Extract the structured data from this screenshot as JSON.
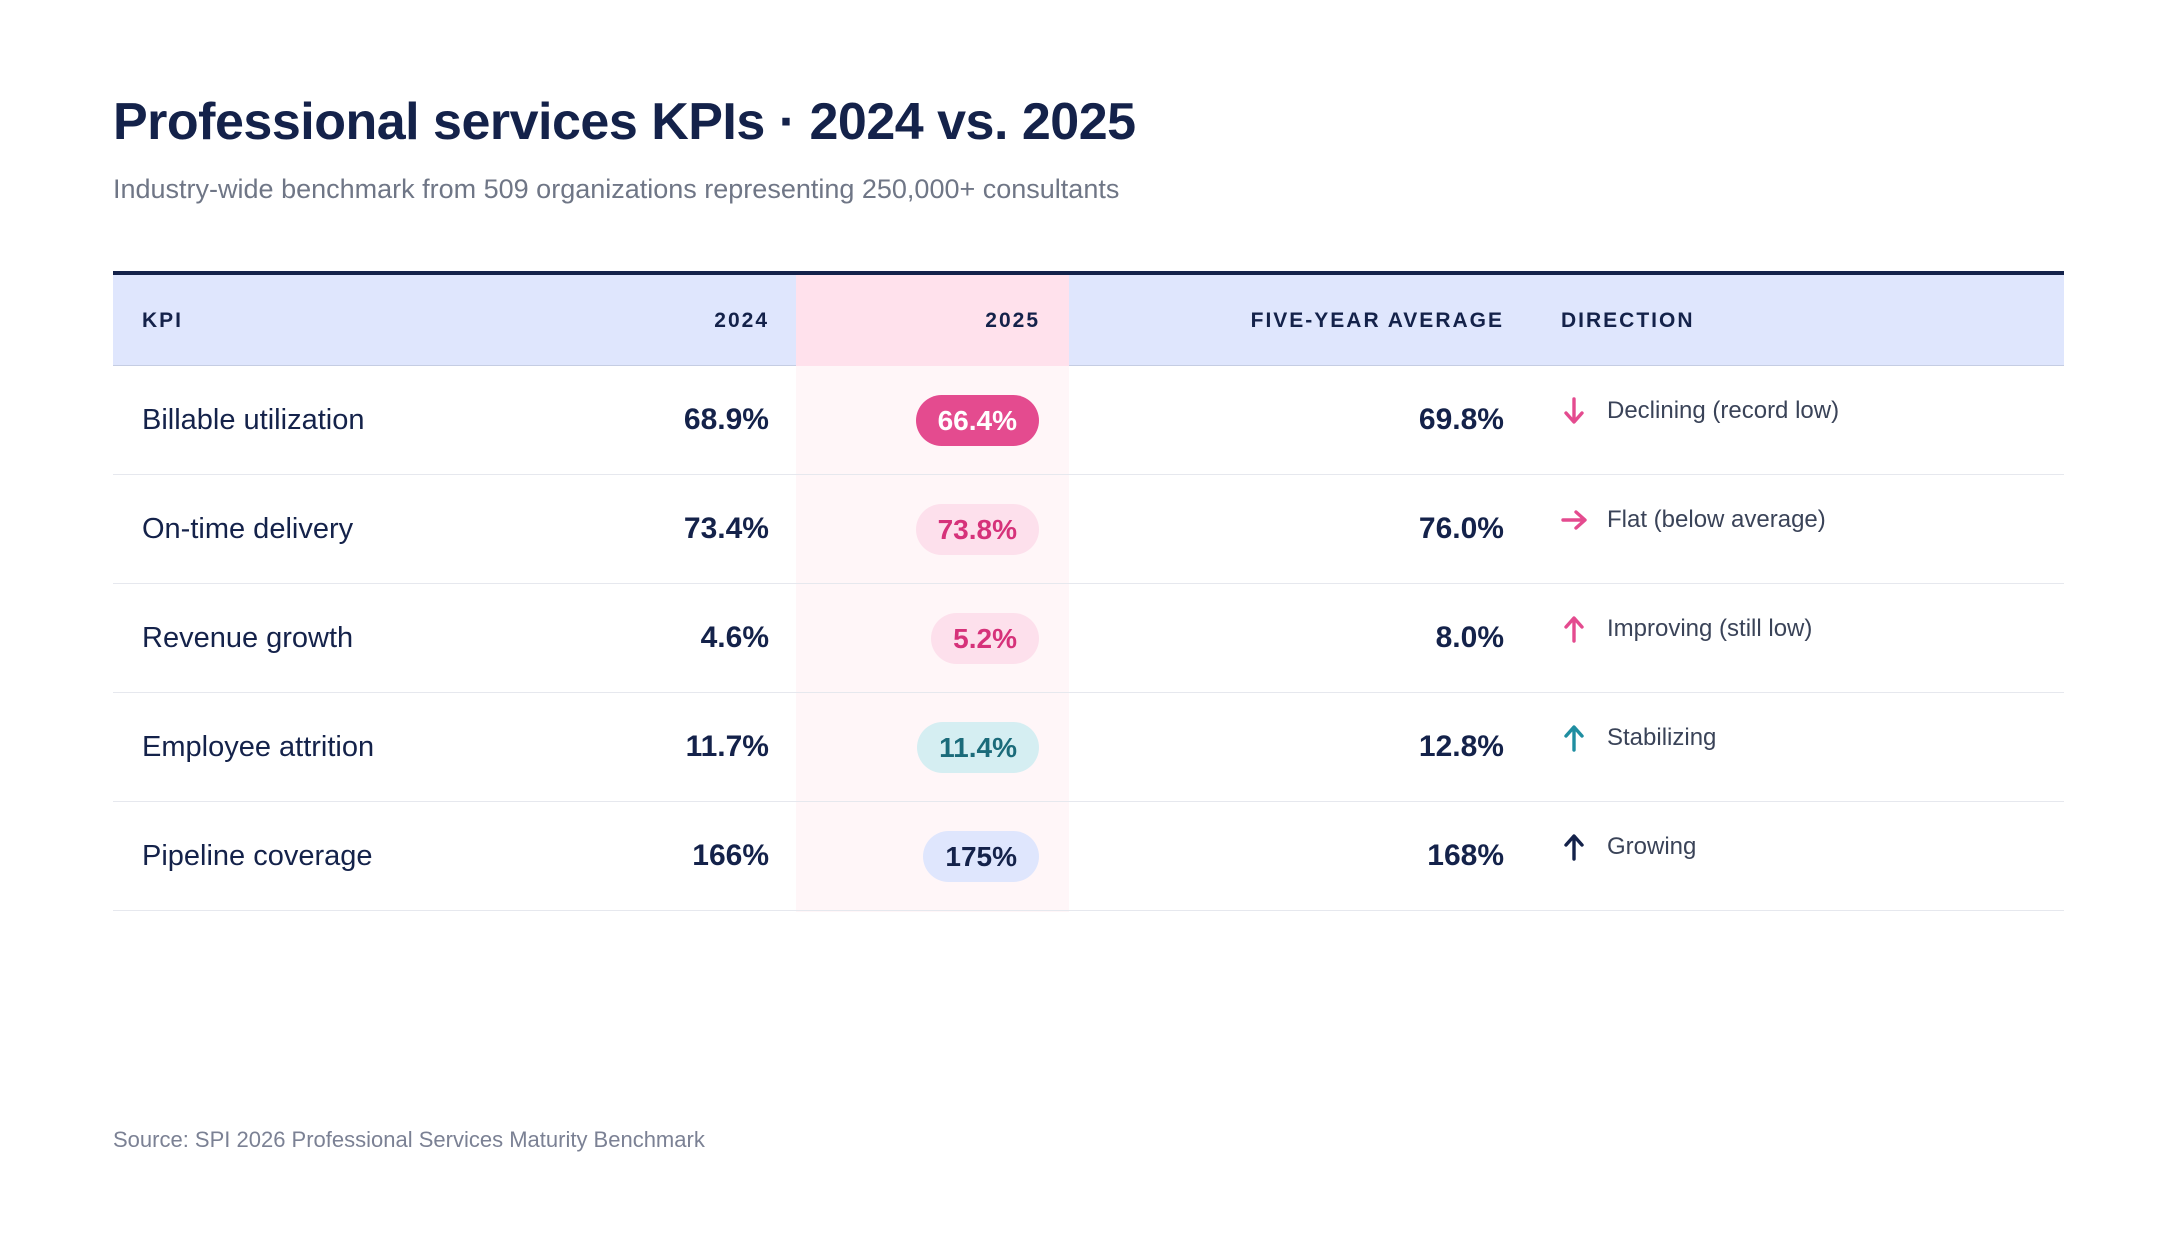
{
  "header": {
    "title": "Professional services KPIs · 2024 vs. 2025",
    "subtitle": "Industry-wide benchmark from 509 organizations representing 250,000+ consultants"
  },
  "columns": {
    "kpi": "KPI",
    "y2024": "2024",
    "y2025": "2025",
    "avg": "FIVE-YEAR AVERAGE",
    "direction": "DIRECTION"
  },
  "rows": [
    {
      "kpi": "Billable utilization",
      "y2024": "68.9%",
      "y2025": "66.4%",
      "avg": "69.8%",
      "direction": "Declining (record low)",
      "arrow": "down",
      "pill_bg": "#e44b8f",
      "pill_fg": "#ffffff",
      "arrow_color": "#e44b8f"
    },
    {
      "kpi": "On-time delivery",
      "y2024": "73.4%",
      "y2025": "73.8%",
      "avg": "76.0%",
      "direction": "Flat (below average)",
      "arrow": "right",
      "pill_bg": "#fde0ec",
      "pill_fg": "#d6327a",
      "arrow_color": "#e44b8f"
    },
    {
      "kpi": "Revenue growth",
      "y2024": "4.6%",
      "y2025": "5.2%",
      "avg": "8.0%",
      "direction": "Improving (still low)",
      "arrow": "up",
      "pill_bg": "#fde0ec",
      "pill_fg": "#d6327a",
      "arrow_color": "#e44b8f"
    },
    {
      "kpi": "Employee attrition",
      "y2024": "11.7%",
      "y2025": "11.4%",
      "avg": "12.8%",
      "direction": "Stabilizing",
      "arrow": "up",
      "pill_bg": "#d5eef2",
      "pill_fg": "#1b6b7a",
      "arrow_color": "#1f8ea1"
    },
    {
      "kpi": "Pipeline coverage",
      "y2024": "166%",
      "y2025": "175%",
      "avg": "168%",
      "direction": "Growing",
      "arrow": "up",
      "pill_bg": "#dfe6fd",
      "pill_fg": "#14224a",
      "arrow_color": "#14224a"
    }
  ],
  "footer": {
    "source": "Source: SPI 2026 Professional Services Maturity Benchmark"
  },
  "chart_data": {
    "type": "table",
    "title": "Professional services KPIs · 2024 vs. 2025",
    "columns": [
      "KPI",
      "2024",
      "2025",
      "FIVE-YEAR AVERAGE",
      "DIRECTION"
    ],
    "rows": [
      [
        "Billable utilization",
        "68.9%",
        "66.4%",
        "69.8%",
        "Declining (record low)"
      ],
      [
        "On-time delivery",
        "73.4%",
        "73.8%",
        "76.0%",
        "Flat (below average)"
      ],
      [
        "Revenue growth",
        "4.6%",
        "5.2%",
        "8.0%",
        "Improving (still low)"
      ],
      [
        "Employee attrition",
        "11.7%",
        "11.4%",
        "12.8%",
        "Stabilizing"
      ],
      [
        "Pipeline coverage",
        "166%",
        "175%",
        "168%",
        "Growing"
      ]
    ]
  }
}
